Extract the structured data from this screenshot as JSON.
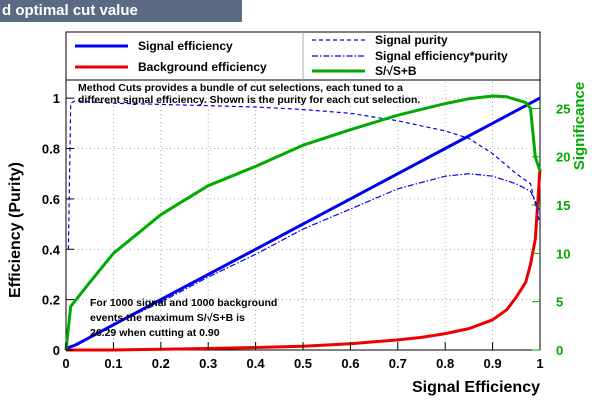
{
  "window": {
    "title": "d optimal cut value"
  },
  "chart_data": {
    "type": "line",
    "xlabel": "Signal Efficiency",
    "ylabel": "Efficiency (Purity)",
    "y2label": "Significance",
    "xlim": [
      0,
      1
    ],
    "ylim": [
      0,
      1.08
    ],
    "y2lim": [
      0,
      28.15
    ],
    "x_ticks": [
      "0",
      "0.1",
      "0.2",
      "0.3",
      "0.4",
      "0.5",
      "0.6",
      "0.7",
      "0.8",
      "0.9",
      "1"
    ],
    "y_ticks": [
      "0",
      "0.2",
      "0.4",
      "0.6",
      "0.8",
      "1"
    ],
    "y2_ticks": [
      "0",
      "5",
      "10",
      "15",
      "20",
      "25"
    ],
    "legend": {
      "placement": "top",
      "entries": [
        "Signal efficiency",
        "Background efficiency",
        "Signal purity",
        "Signal efficiency*purity",
        "S/√S+B"
      ]
    },
    "annotations": {
      "top_line1": "Method Cuts provides a bundle of cut selections, each tuned to a",
      "top_line2": "different signal efficiency. Shown is the purity for each cut selection.",
      "bottom_line1": "For 1000 signal and 1000 background",
      "bottom_line2": "events the maximum S/√S+B  is",
      "bottom_line3": "26.29 when cutting at 0.90"
    },
    "colors": {
      "signal": "#0000ee",
      "background": "#ee0000",
      "significance": "#00aa00",
      "axis_text": "#000000",
      "y2_text": "#00aa00"
    },
    "series": [
      {
        "name": "Signal efficiency",
        "color": "#0000ee",
        "style": "solid",
        "axis": "left",
        "x": [
          0,
          0.005,
          0.02,
          0.05,
          0.1,
          0.2,
          0.3,
          0.4,
          0.5,
          0.6,
          0.7,
          0.8,
          0.9,
          0.95,
          1.0
        ],
        "y": [
          0,
          0.01,
          0.02,
          0.05,
          0.1,
          0.2,
          0.3,
          0.4,
          0.5,
          0.6,
          0.7,
          0.8,
          0.9,
          0.95,
          1.0
        ]
      },
      {
        "name": "Background efficiency",
        "color": "#ee0000",
        "style": "solid",
        "axis": "left",
        "x": [
          0,
          0.1,
          0.2,
          0.3,
          0.4,
          0.5,
          0.6,
          0.7,
          0.75,
          0.8,
          0.85,
          0.9,
          0.93,
          0.95,
          0.97,
          0.98,
          0.99,
          1.0
        ],
        "y": [
          0,
          0.0,
          0.003,
          0.006,
          0.01,
          0.015,
          0.025,
          0.04,
          0.05,
          0.065,
          0.085,
          0.12,
          0.16,
          0.21,
          0.27,
          0.34,
          0.44,
          0.72
        ]
      },
      {
        "name": "Signal purity",
        "color": "#0000ee",
        "style": "dashed",
        "axis": "left",
        "x": [
          0.005,
          0.01,
          0.02,
          0.05,
          0.1,
          0.2,
          0.3,
          0.4,
          0.5,
          0.6,
          0.7,
          0.75,
          0.8,
          0.85,
          0.9,
          0.95,
          0.98,
          1.0
        ],
        "y": [
          0.4,
          0.98,
          0.99,
          0.985,
          0.98,
          0.975,
          0.97,
          0.965,
          0.955,
          0.94,
          0.91,
          0.89,
          0.87,
          0.84,
          0.78,
          0.7,
          0.66,
          0.5
        ]
      },
      {
        "name": "Signal efficiency*purity",
        "color": "#0000ee",
        "style": "dashdot",
        "axis": "left",
        "x": [
          0,
          0.05,
          0.1,
          0.2,
          0.3,
          0.4,
          0.5,
          0.6,
          0.7,
          0.8,
          0.85,
          0.9,
          0.95,
          0.98,
          1.0
        ],
        "y": [
          0,
          0.05,
          0.1,
          0.19,
          0.29,
          0.38,
          0.48,
          0.56,
          0.64,
          0.69,
          0.7,
          0.69,
          0.66,
          0.63,
          0.55
        ]
      },
      {
        "name": "S/√S+B",
        "color": "#00aa00",
        "style": "solid",
        "axis": "right",
        "x": [
          0,
          0.01,
          0.05,
          0.1,
          0.2,
          0.3,
          0.4,
          0.5,
          0.6,
          0.7,
          0.8,
          0.85,
          0.9,
          0.93,
          0.95,
          0.97,
          0.98,
          0.99,
          1.0
        ],
        "y": [
          0,
          4.5,
          7.0,
          10.0,
          14.0,
          17.0,
          19.0,
          21.2,
          22.8,
          24.3,
          25.5,
          26.0,
          26.29,
          26.2,
          25.9,
          25.6,
          25.0,
          20.0,
          18.5
        ]
      }
    ]
  }
}
